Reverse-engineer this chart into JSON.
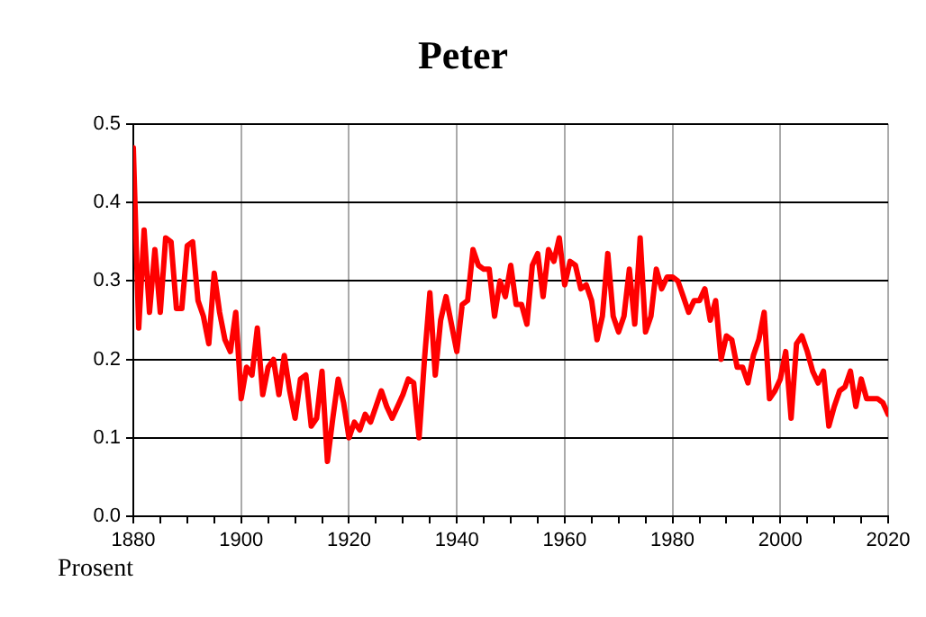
{
  "chart_data": {
    "type": "line",
    "title": "Peter",
    "ylabel": "Prosent",
    "x": [
      1880,
      1881,
      1882,
      1883,
      1884,
      1885,
      1886,
      1887,
      1888,
      1889,
      1890,
      1891,
      1892,
      1893,
      1894,
      1895,
      1896,
      1897,
      1898,
      1899,
      1900,
      1901,
      1902,
      1903,
      1904,
      1905,
      1906,
      1907,
      1908,
      1909,
      1910,
      1911,
      1912,
      1913,
      1914,
      1915,
      1916,
      1917,
      1918,
      1919,
      1920,
      1921,
      1922,
      1923,
      1924,
      1925,
      1926,
      1927,
      1928,
      1929,
      1930,
      1931,
      1932,
      1933,
      1934,
      1935,
      1936,
      1937,
      1938,
      1939,
      1940,
      1941,
      1942,
      1943,
      1944,
      1945,
      1946,
      1947,
      1948,
      1949,
      1950,
      1951,
      1952,
      1953,
      1954,
      1955,
      1956,
      1957,
      1958,
      1959,
      1960,
      1961,
      1962,
      1963,
      1964,
      1965,
      1966,
      1967,
      1968,
      1969,
      1970,
      1971,
      1972,
      1973,
      1974,
      1975,
      1976,
      1977,
      1978,
      1979,
      1980,
      1981,
      1982,
      1983,
      1984,
      1985,
      1986,
      1987,
      1988,
      1989,
      1990,
      1991,
      1992,
      1993,
      1994,
      1995,
      1996,
      1997,
      1998,
      1999,
      2000,
      2001,
      2002,
      2003,
      2004,
      2005,
      2006,
      2007,
      2008,
      2009,
      2010,
      2011,
      2012,
      2013,
      2014,
      2015,
      2016,
      2017,
      2018,
      2019,
      2020
    ],
    "series": [
      {
        "color": "#ff0000",
        "values": [
          0.47,
          0.24,
          0.365,
          0.26,
          0.34,
          0.26,
          0.355,
          0.35,
          0.265,
          0.265,
          0.345,
          0.35,
          0.275,
          0.255,
          0.22,
          0.31,
          0.26,
          0.225,
          0.21,
          0.26,
          0.15,
          0.19,
          0.18,
          0.24,
          0.155,
          0.19,
          0.2,
          0.155,
          0.205,
          0.16,
          0.125,
          0.175,
          0.18,
          0.115,
          0.125,
          0.185,
          0.07,
          0.125,
          0.175,
          0.145,
          0.1,
          0.12,
          0.11,
          0.13,
          0.12,
          0.14,
          0.16,
          0.14,
          0.125,
          0.14,
          0.155,
          0.175,
          0.17,
          0.1,
          0.2,
          0.285,
          0.18,
          0.25,
          0.28,
          0.245,
          0.21,
          0.27,
          0.275,
          0.34,
          0.32,
          0.315,
          0.315,
          0.255,
          0.3,
          0.28,
          0.32,
          0.27,
          0.27,
          0.245,
          0.32,
          0.335,
          0.28,
          0.34,
          0.325,
          0.355,
          0.295,
          0.325,
          0.32,
          0.29,
          0.295,
          0.275,
          0.225,
          0.255,
          0.335,
          0.255,
          0.235,
          0.255,
          0.315,
          0.245,
          0.355,
          0.235,
          0.255,
          0.315,
          0.29,
          0.305,
          0.305,
          0.3,
          0.28,
          0.26,
          0.275,
          0.275,
          0.29,
          0.25,
          0.275,
          0.2,
          0.23,
          0.225,
          0.19,
          0.19,
          0.17,
          0.205,
          0.225,
          0.26,
          0.15,
          0.16,
          0.175,
          0.21,
          0.125,
          0.22,
          0.23,
          0.21,
          0.185,
          0.17,
          0.185,
          0.115,
          0.14,
          0.16,
          0.165,
          0.185,
          0.14,
          0.175,
          0.15,
          0.15,
          0.15,
          0.145,
          0.13
        ]
      }
    ],
    "xlim": [
      1880,
      2020
    ],
    "xticks": [
      1880,
      {
        "value": 1885,
        "label": null
      },
      {
        "value": 1890,
        "label": null
      },
      {
        "value": 1895,
        "label": null
      },
      1900,
      {
        "value": 1905,
        "label": null
      },
      {
        "value": 1910,
        "label": null
      },
      {
        "value": 1915,
        "label": null
      },
      1920,
      {
        "value": 1925,
        "label": null
      },
      {
        "value": 1930,
        "label": null
      },
      {
        "value": 1935,
        "label": null
      },
      1940,
      {
        "value": 1945,
        "label": null
      },
      {
        "value": 1950,
        "label": null
      },
      {
        "value": 1955,
        "label": null
      },
      1960,
      {
        "value": 1965,
        "label": null
      },
      {
        "value": 1970,
        "label": null
      },
      {
        "value": 1975,
        "label": null
      },
      1980,
      {
        "value": 1985,
        "label": null
      },
      {
        "value": 1990,
        "label": null
      },
      {
        "value": 1995,
        "label": null
      },
      2000,
      {
        "value": 2005,
        "label": null
      },
      {
        "value": 2010,
        "label": null
      },
      {
        "value": 2015,
        "label": null
      },
      2020
    ],
    "ylim": [
      0,
      0.5
    ],
    "yticks": [
      {
        "value": 0,
        "label": "0.0"
      },
      0.1,
      0.2,
      0.3,
      0.4,
      0.5
    ],
    "grid": true,
    "legend": false,
    "marker": "none",
    "line_style": "solid"
  }
}
